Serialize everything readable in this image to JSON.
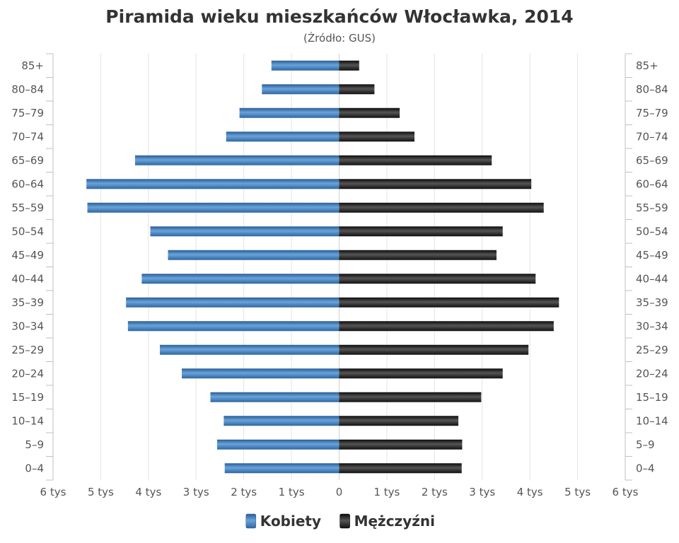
{
  "chart_data": {
    "type": "bar",
    "orientation": "horizontal",
    "layout": "population-pyramid",
    "title": "Piramida wieku mieszkańców Włocławka, 2014",
    "subtitle": "(Źródło: GUS)",
    "categories": [
      "0–4",
      "5–9",
      "10–14",
      "15–19",
      "20–24",
      "25–29",
      "30–34",
      "35–39",
      "40–44",
      "45–49",
      "50–54",
      "55–59",
      "60–64",
      "65–69",
      "70–74",
      "75–79",
      "80–84",
      "85+"
    ],
    "series": [
      {
        "name": "Kobiety",
        "color": "#3a76b5",
        "side": "left",
        "values": [
          2400,
          2560,
          2420,
          2700,
          3300,
          3760,
          4430,
          4470,
          4140,
          3590,
          3960,
          5280,
          5300,
          4280,
          2370,
          2090,
          1620,
          1420
        ]
      },
      {
        "name": "Mężczyźni",
        "color": "#1c1c1c",
        "side": "right",
        "values": [
          2570,
          2580,
          2500,
          2980,
          3430,
          3970,
          4500,
          4610,
          4120,
          3300,
          3430,
          4290,
          4030,
          3200,
          1580,
          1270,
          740,
          420
        ]
      }
    ],
    "xlim": [
      -6000,
      6000
    ],
    "x_ticks": [
      -6000,
      -5000,
      -4000,
      -3000,
      -2000,
      -1000,
      0,
      1000,
      2000,
      3000,
      4000,
      5000,
      6000
    ],
    "x_tick_labels": [
      "6 tys",
      "5 tys",
      "4 tys",
      "3 tys",
      "2 tys",
      "1 tys",
      "0",
      "1 tys",
      "2 tys",
      "3 tys",
      "4 tys",
      "5 tys",
      "6 tys"
    ],
    "grid": true,
    "category_labels_both_sides": true,
    "legend": "bottom-center"
  }
}
